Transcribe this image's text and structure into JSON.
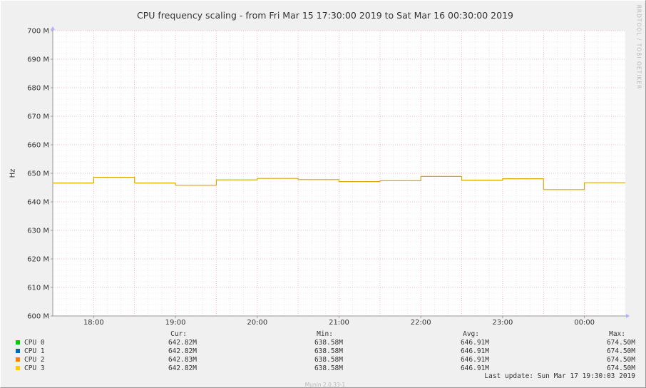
{
  "watermark": "RRDTOOL / TOBI OETIKER",
  "footer": "Munin 2.0.33-1",
  "legend": {
    "headers": [
      "Cur:",
      "Min:",
      "Avg:",
      "Max:"
    ],
    "rows": [
      {
        "name": "CPU 0",
        "color": "#00cc00",
        "values": [
          "642.82M",
          "638.58M",
          "646.91M",
          "674.50M"
        ]
      },
      {
        "name": "CPU 1",
        "color": "#0066b3",
        "values": [
          "642.82M",
          "638.58M",
          "646.91M",
          "674.50M"
        ]
      },
      {
        "name": "CPU 2",
        "color": "#ff8000",
        "values": [
          "642.83M",
          "638.58M",
          "646.91M",
          "674.50M"
        ]
      },
      {
        "name": "CPU 3",
        "color": "#ffcc00",
        "values": [
          "642.82M",
          "638.58M",
          "646.91M",
          "674.50M"
        ]
      }
    ],
    "last_update": "Last update: Sun Mar 17 19:30:03 2019"
  },
  "chart_data": {
    "type": "line",
    "title": "CPU frequency scaling - from Fri Mar 15 17:30:00 2019 to Sat Mar 16 00:30:00 2019",
    "ylabel": "Hz",
    "xlabel": "",
    "ylim": [
      600000000,
      700000000
    ],
    "xlim": [
      "17:30",
      "00:30"
    ],
    "y_ticks": [
      {
        "v": 600000000,
        "label": "600 M"
      },
      {
        "v": 610000000,
        "label": "610 M"
      },
      {
        "v": 620000000,
        "label": "620 M"
      },
      {
        "v": 630000000,
        "label": "630 M"
      },
      {
        "v": 640000000,
        "label": "640 M"
      },
      {
        "v": 650000000,
        "label": "650 M"
      },
      {
        "v": 660000000,
        "label": "660 M"
      },
      {
        "v": 670000000,
        "label": "670 M"
      },
      {
        "v": 680000000,
        "label": "680 M"
      },
      {
        "v": 690000000,
        "label": "690 M"
      },
      {
        "v": 700000000,
        "label": "700 M"
      }
    ],
    "x_ticks": [
      "18:00",
      "19:00",
      "20:00",
      "21:00",
      "22:00",
      "23:00",
      "00:00"
    ],
    "grid": true,
    "series": [
      {
        "name": "CPU 3",
        "color": "#ffcc00",
        "step": true,
        "points": [
          [
            "17:30",
            646600000
          ],
          [
            "18:00",
            648600000
          ],
          [
            "18:30",
            646600000
          ],
          [
            "19:00",
            645800000
          ],
          [
            "19:30",
            647700000
          ],
          [
            "20:00",
            648200000
          ],
          [
            "20:30",
            647800000
          ],
          [
            "21:00",
            647100000
          ],
          [
            "21:30",
            647400000
          ],
          [
            "22:00",
            648900000
          ],
          [
            "22:30",
            647600000
          ],
          [
            "23:00",
            648100000
          ],
          [
            "23:30",
            644300000
          ],
          [
            "00:00",
            646700000
          ],
          [
            "00:30",
            646700000
          ]
        ]
      }
    ]
  }
}
